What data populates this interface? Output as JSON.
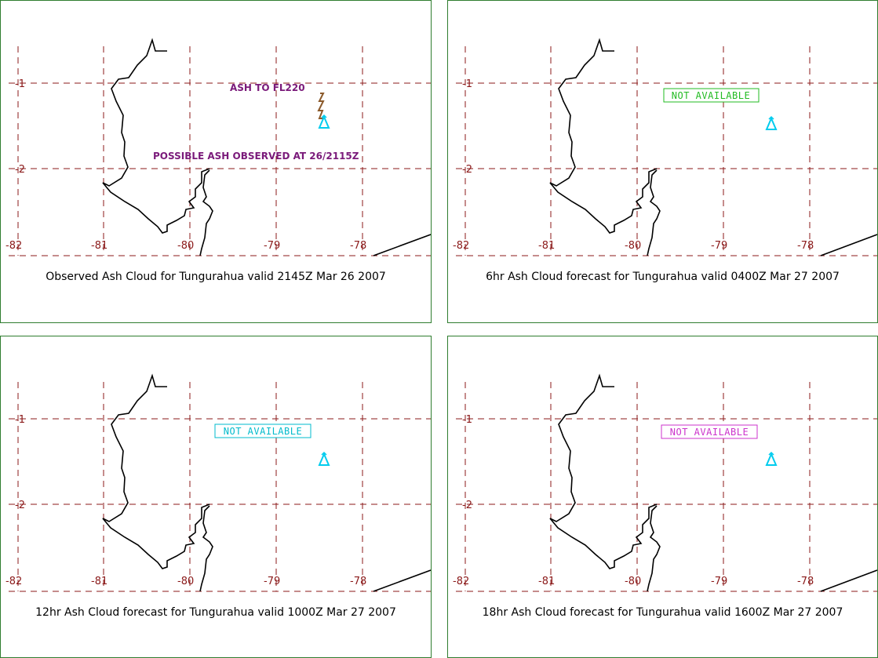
{
  "grid": {
    "lon_labels": [
      "-82",
      "-81",
      "-80",
      "-79",
      "-78"
    ],
    "lat_labels": [
      "-1",
      "-2"
    ]
  },
  "colors": {
    "grid": "#8b1a1a",
    "panel_border": "#2f7d2f",
    "volcano": "#00ccee",
    "ash_observed_text": "#7a1a7a",
    "ash_marker": "#8b5a2b"
  },
  "icons": {
    "volcano": "volcano-icon"
  },
  "panels": [
    {
      "caption": "Observed Ash Cloud for Tungurahua valid 2145Z Mar 26 2007",
      "annotations": [
        "ASH TO FL220",
        "POSSIBLE ASH OBSERVED AT 26/2115Z"
      ],
      "not_available": ""
    },
    {
      "caption": "6hr Ash Cloud forecast for Tungurahua valid 0400Z Mar 27 2007",
      "not_available": "NOT AVAILABLE",
      "na_color": "#22bb22"
    },
    {
      "caption": "12hr Ash Cloud forecast for Tungurahua valid 1000Z Mar 27 2007",
      "not_available": "NOT AVAILABLE",
      "na_color": "#00bbcc"
    },
    {
      "caption": "18hr Ash Cloud forecast for Tungurahua valid 1600Z Mar 27 2007",
      "not_available": "NOT AVAILABLE",
      "na_color": "#cc33cc"
    }
  ]
}
